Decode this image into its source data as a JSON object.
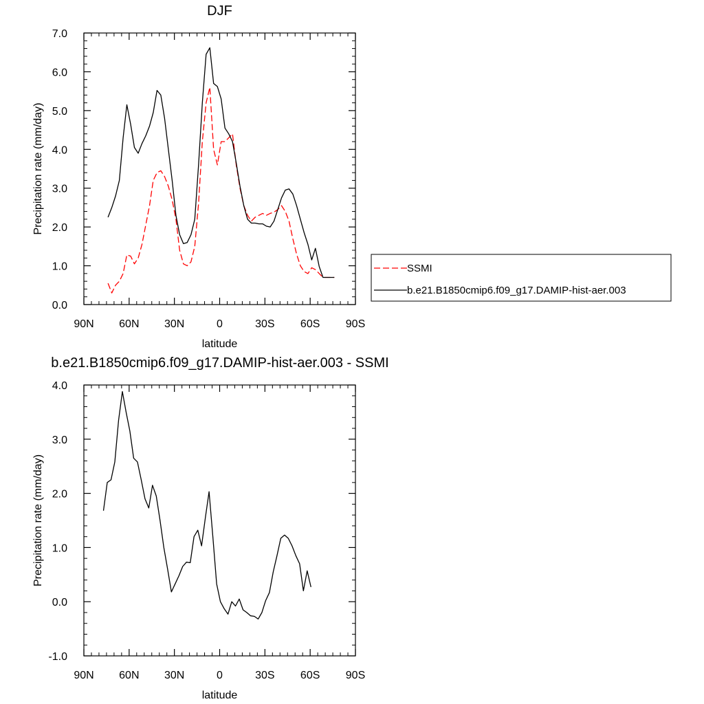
{
  "chart_data": [
    {
      "type": "line",
      "title": "DJF",
      "xlabel": "latitude",
      "ylabel": "Precipitation rate (mm/day)",
      "xlim": [
        90,
        -90
      ],
      "ylim": [
        0.0,
        7.0
      ],
      "xtick_values": [
        90,
        60,
        30,
        0,
        -30,
        -60,
        -90
      ],
      "xtick_labels": [
        "90N",
        "60N",
        "30N",
        "0",
        "30S",
        "60S",
        "90S"
      ],
      "ytick_values": [
        0,
        1,
        2,
        3,
        4,
        5,
        6,
        7
      ],
      "ytick_labels": [
        "0.0",
        "1.0",
        "2.0",
        "3.0",
        "4.0",
        "5.0",
        "6.0",
        "7.0"
      ],
      "grid": false,
      "legend": {
        "placement": "right-outside"
      },
      "series": [
        {
          "name": "SSMI",
          "color": "#ff0000",
          "dash": "dashed",
          "x": [
            74,
            71.5,
            69,
            66.5,
            64,
            61.5,
            59,
            56.5,
            54,
            51.5,
            49,
            46.5,
            44,
            41.5,
            39,
            36.5,
            34,
            31.5,
            29,
            26.5,
            24,
            21.5,
            19,
            16.5,
            14,
            11.5,
            9,
            6.5,
            4,
            1.5,
            -1,
            -3.5,
            -6,
            -8.5,
            -11,
            -13.5,
            -16,
            -18.5,
            -21,
            -23.5,
            -26,
            -28.5,
            -31,
            -33.5,
            -36,
            -38.5,
            -41,
            -43.5,
            -46,
            -48.5,
            -51,
            -53.5,
            -56,
            -58.5,
            -61,
            -63.5,
            -66,
            -68.5,
            -71,
            -73.5,
            -76
          ],
          "y": [
            0.55,
            0.3,
            0.5,
            0.6,
            0.8,
            1.28,
            1.25,
            1.05,
            1.2,
            1.55,
            2.05,
            2.55,
            3.2,
            3.4,
            3.45,
            3.3,
            3.05,
            2.7,
            2.2,
            1.4,
            1.05,
            1.0,
            1.1,
            1.5,
            2.6,
            4.2,
            5.2,
            5.6,
            4.0,
            3.6,
            4.2,
            4.2,
            4.3,
            4.4,
            3.6,
            3.0,
            2.55,
            2.3,
            2.15,
            2.25,
            2.3,
            2.35,
            2.3,
            2.35,
            2.38,
            2.45,
            2.55,
            2.4,
            2.15,
            1.7,
            1.3,
            1.0,
            0.85,
            0.8,
            0.95,
            0.9,
            0.8,
            0.7,
            0.7,
            0.7,
            0.7
          ]
        },
        {
          "name": "b.e21.B1850cmip6.f09_g17.DAMIP-hist-aer.003",
          "color": "#000000",
          "dash": "solid",
          "x": [
            74,
            71.5,
            69,
            66.5,
            64,
            61.5,
            59,
            56.5,
            54,
            51.5,
            49,
            46.5,
            44,
            41.5,
            39,
            36.5,
            34,
            31.5,
            29,
            26.5,
            24,
            21.5,
            19,
            16.5,
            14,
            11.5,
            9,
            6.5,
            4,
            1.5,
            -1,
            -3.5,
            -6,
            -8.5,
            -11,
            -13.5,
            -16,
            -18.5,
            -21,
            -23.5,
            -26,
            -28.5,
            -31,
            -33.5,
            -36,
            -38.5,
            -41,
            -43.5,
            -46,
            -48.5,
            -51,
            -53.5,
            -56,
            -58.5,
            -61,
            -63.5,
            -66,
            -68.5,
            -71,
            -73.5,
            -76
          ],
          "y": [
            2.25,
            2.5,
            2.8,
            3.2,
            4.3,
            5.15,
            4.65,
            4.05,
            3.9,
            4.15,
            4.35,
            4.6,
            4.95,
            5.52,
            5.4,
            4.8,
            4.0,
            3.2,
            2.3,
            1.8,
            1.57,
            1.6,
            1.8,
            2.2,
            3.6,
            5.2,
            6.45,
            6.62,
            5.7,
            5.62,
            5.3,
            4.55,
            4.4,
            4.2,
            3.65,
            3.05,
            2.55,
            2.2,
            2.1,
            2.1,
            2.08,
            2.08,
            2.02,
            2.0,
            2.15,
            2.45,
            2.75,
            2.95,
            2.98,
            2.85,
            2.55,
            2.2,
            1.85,
            1.55,
            1.15,
            1.45,
            0.98,
            0.7,
            0.7,
            0.7,
            0.7
          ]
        }
      ]
    },
    {
      "type": "line",
      "title": "b.e21.B1850cmip6.f09_g17.DAMIP-hist-aer.003 - SSMI",
      "xlabel": "latitude",
      "ylabel": "Precipitation rate (mm/day)",
      "xlim": [
        90,
        -90
      ],
      "ylim": [
        -1.0,
        4.0
      ],
      "xtick_values": [
        90,
        60,
        30,
        0,
        -30,
        -60,
        -90
      ],
      "xtick_labels": [
        "90N",
        "60N",
        "30N",
        "0",
        "30S",
        "60S",
        "90S"
      ],
      "ytick_values": [
        -1,
        0,
        1,
        2,
        3,
        4
      ],
      "ytick_labels": [
        "-1.0",
        "0.0",
        "1.0",
        "2.0",
        "3.0",
        "4.0"
      ],
      "grid": false,
      "series": [
        {
          "color": "#000000",
          "dash": "solid",
          "x": [
            77,
            74.5,
            72,
            69.5,
            67,
            64.5,
            62,
            59.5,
            57,
            54.5,
            52,
            49.5,
            47,
            44.5,
            42,
            39.5,
            37,
            34.5,
            32,
            29.5,
            27,
            24.5,
            22,
            19.5,
            17,
            14.5,
            12,
            9.5,
            7,
            4.5,
            2,
            -0.5,
            -3,
            -5.5,
            -8,
            -10.5,
            -13,
            -15.5,
            -18,
            -20.5,
            -23,
            -25.5,
            -28,
            -30.5,
            -33,
            -35.5,
            -38,
            -40.5,
            -43,
            -45.5,
            -48,
            -50.5,
            -53,
            -55.5,
            -58,
            -60.5,
            -63,
            -65.5,
            -68,
            -70.5,
            -73
          ],
          "y": [
            1.68,
            2.2,
            2.25,
            2.58,
            3.35,
            3.88,
            3.5,
            3.15,
            2.65,
            2.58,
            2.25,
            1.9,
            1.73,
            2.15,
            1.95,
            1.5,
            1.0,
            0.6,
            0.18,
            0.33,
            0.48,
            0.65,
            0.73,
            0.72,
            1.2,
            1.32,
            1.03,
            1.55,
            2.03,
            1.2,
            0.33,
            0.0,
            -0.13,
            -0.23,
            0.0,
            -0.08,
            0.05,
            -0.15,
            -0.2,
            -0.26,
            -0.27,
            -0.32,
            -0.2,
            0.02,
            0.17,
            0.55,
            0.85,
            1.17,
            1.23,
            1.17,
            1.03,
            0.85,
            0.7,
            0.2,
            0.57,
            0.27,
            null,
            null,
            null,
            null,
            null
          ]
        }
      ]
    }
  ]
}
